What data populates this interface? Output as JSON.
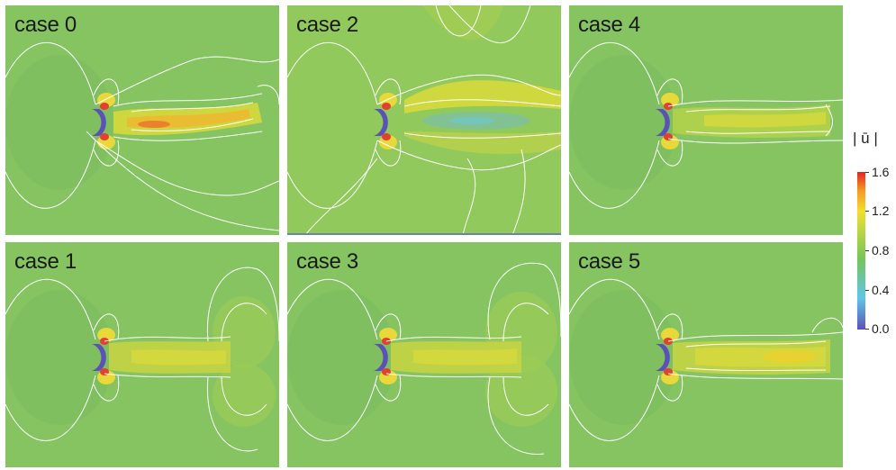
{
  "panels": [
    {
      "label": "case 0"
    },
    {
      "label": "case 2"
    },
    {
      "label": "case 4"
    },
    {
      "label": "case 1"
    },
    {
      "label": "case 3"
    },
    {
      "label": "case 5"
    }
  ],
  "colorbar": {
    "title": "| ū |",
    "ticks": [
      "1.6",
      "1.2",
      "0.8",
      "0.4",
      "0.0"
    ],
    "min": 0.0,
    "max": 1.6
  },
  "colors": {
    "background": "#86c462",
    "low": "#5b52b8",
    "high": "#e52222",
    "contour": "#ffffff"
  }
}
